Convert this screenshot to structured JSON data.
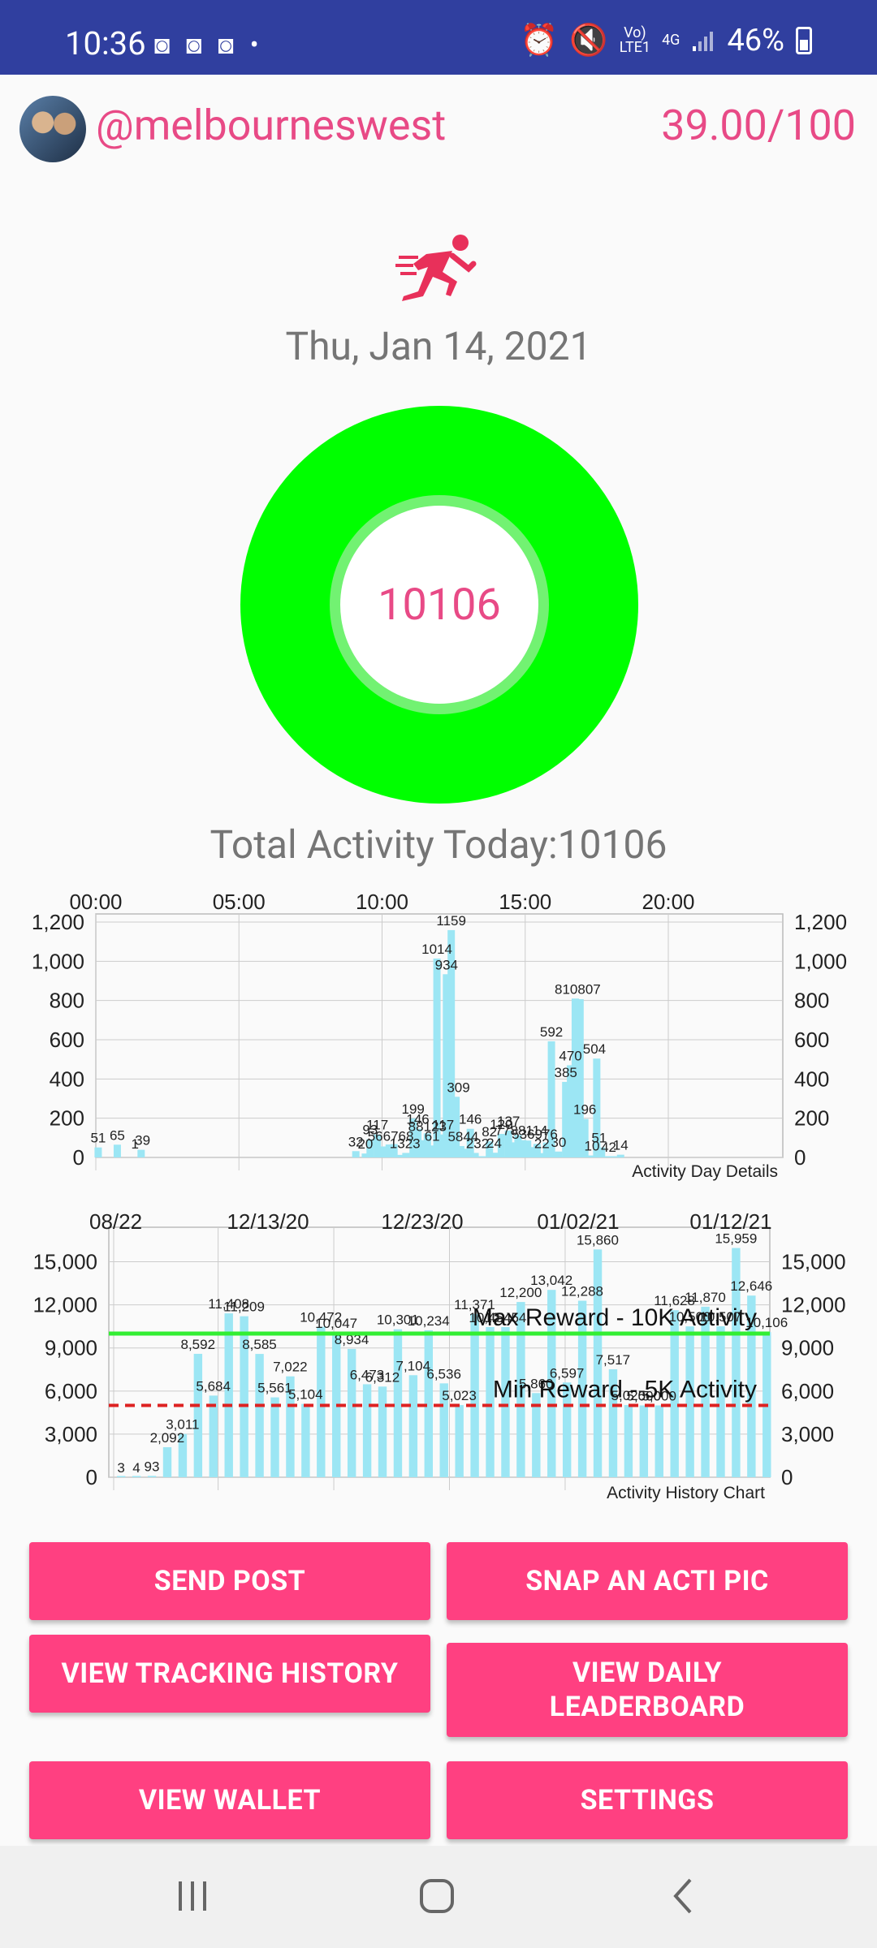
{
  "status_bar": {
    "time": "10:36",
    "notifications": "◙ ◙ ◙ •",
    "network_top": "Vo)",
    "network_bottom": "LTE1",
    "net_type": "4G",
    "battery": "46%"
  },
  "header": {
    "username": "@melbourneswest",
    "score": "39.00/100"
  },
  "date": "Thu, Jan 14, 2021",
  "ring_value": "10106",
  "total_activity": "Total Activity Today:10106",
  "colors": {
    "accent": "#e84a86",
    "button": "#ff4081",
    "ring": "#00ff00",
    "bars": "#9ce6f4",
    "max_line": "#33ee33",
    "min_line": "#dd2222"
  },
  "chart_data": [
    {
      "type": "bar",
      "title": "Activity Day Details",
      "x_ticks": [
        "00:00",
        "05:00",
        "10:00",
        "15:00",
        "20:00"
      ],
      "x_range_minutes": [
        0,
        1440
      ],
      "y_ticks": [
        "0",
        "200",
        "400",
        "600",
        "800",
        "1,000",
        "1,200"
      ],
      "ylim": [
        0,
        1200
      ],
      "bars": [
        {
          "t": 5,
          "v": 51
        },
        {
          "t": 45,
          "v": 65
        },
        {
          "t": 95,
          "v": 39
        },
        {
          "t": 545,
          "v": 32
        },
        {
          "t": 565,
          "v": 20
        },
        {
          "t": 575,
          "v": 93
        },
        {
          "t": 590,
          "v": 117
        },
        {
          "t": 605,
          "v": 56
        },
        {
          "t": 615,
          "v": 66
        },
        {
          "t": 625,
          "v": 68
        },
        {
          "t": 640,
          "v": 13
        },
        {
          "t": 650,
          "v": 23
        },
        {
          "t": 665,
          "v": 199
        },
        {
          "t": 675,
          "v": 146
        },
        {
          "t": 685,
          "v": 88
        },
        {
          "t": 695,
          "v": 123
        },
        {
          "t": 705,
          "v": 61
        },
        {
          "t": 715,
          "v": 1014
        },
        {
          "t": 725,
          "v": 117
        },
        {
          "t": 735,
          "v": 934
        },
        {
          "t": 745,
          "v": 1159
        },
        {
          "t": 755,
          "v": 309
        },
        {
          "t": 765,
          "v": 58
        },
        {
          "t": 775,
          "v": 44
        },
        {
          "t": 785,
          "v": 146
        },
        {
          "t": 795,
          "v": 23
        },
        {
          "t": 810,
          "v": 2
        },
        {
          "t": 825,
          "v": 82
        },
        {
          "t": 835,
          "v": 24
        },
        {
          "t": 850,
          "v": 120
        },
        {
          "t": 865,
          "v": 137
        },
        {
          "t": 875,
          "v": 77
        },
        {
          "t": 885,
          "v": 114
        },
        {
          "t": 895,
          "v": 88
        },
        {
          "t": 905,
          "v": 86
        },
        {
          "t": 915,
          "v": 53
        },
        {
          "t": 925,
          "v": 69
        },
        {
          "t": 935,
          "v": 22
        },
        {
          "t": 945,
          "v": 76
        },
        {
          "t": 955,
          "v": 592
        },
        {
          "t": 970,
          "v": 30
        },
        {
          "t": 985,
          "v": 385
        },
        {
          "t": 995,
          "v": 470
        },
        {
          "t": 1005,
          "v": 810
        },
        {
          "t": 1015,
          "v": 807
        },
        {
          "t": 1025,
          "v": 196
        },
        {
          "t": 1040,
          "v": 10
        },
        {
          "t": 1050,
          "v": 504
        },
        {
          "t": 1060,
          "v": 51
        },
        {
          "t": 1075,
          "v": 4
        },
        {
          "t": 1085,
          "v": 2
        },
        {
          "t": 1100,
          "v": 14
        }
      ],
      "labels": [
        {
          "t": 5,
          "v": 51,
          "text": "51"
        },
        {
          "t": 45,
          "v": 65,
          "text": "65"
        },
        {
          "t": 82,
          "v": 20,
          "text": "1"
        },
        {
          "t": 98,
          "v": 39,
          "text": "39"
        },
        {
          "t": 545,
          "v": 32,
          "text": "32"
        },
        {
          "t": 565,
          "v": 20,
          "text": "20"
        },
        {
          "t": 575,
          "v": 93,
          "text": "93"
        },
        {
          "t": 590,
          "v": 117,
          "text": "117"
        },
        {
          "t": 618,
          "v": 60,
          "text": "566768"
        },
        {
          "t": 648,
          "v": 23,
          "text": "1323"
        },
        {
          "t": 665,
          "v": 199,
          "text": "199"
        },
        {
          "t": 675,
          "v": 146,
          "text": "146"
        },
        {
          "t": 695,
          "v": 110,
          "text": "88123"
        },
        {
          "t": 705,
          "v": 61,
          "text": "61"
        },
        {
          "t": 715,
          "v": 1014,
          "text": "1014"
        },
        {
          "t": 728,
          "v": 117,
          "text": "117"
        },
        {
          "t": 735,
          "v": 934,
          "text": "934"
        },
        {
          "t": 745,
          "v": 1159,
          "text": "1159"
        },
        {
          "t": 760,
          "v": 309,
          "text": "309"
        },
        {
          "t": 770,
          "v": 58,
          "text": "5844"
        },
        {
          "t": 785,
          "v": 146,
          "text": "146"
        },
        {
          "t": 800,
          "v": 23,
          "text": "232"
        },
        {
          "t": 825,
          "v": 82,
          "text": "82"
        },
        {
          "t": 835,
          "v": 24,
          "text": "24"
        },
        {
          "t": 850,
          "v": 120,
          "text": "120"
        },
        {
          "t": 865,
          "v": 137,
          "text": "137"
        },
        {
          "t": 892,
          "v": 90,
          "text": "7788114"
        },
        {
          "t": 920,
          "v": 70,
          "text": "536976"
        },
        {
          "t": 935,
          "v": 22,
          "text": "22"
        },
        {
          "t": 955,
          "v": 592,
          "text": "592"
        },
        {
          "t": 970,
          "v": 30,
          "text": "30"
        },
        {
          "t": 985,
          "v": 385,
          "text": "385"
        },
        {
          "t": 995,
          "v": 470,
          "text": "470"
        },
        {
          "t": 1010,
          "v": 810,
          "text": "810807"
        },
        {
          "t": 1025,
          "v": 196,
          "text": "196"
        },
        {
          "t": 1045,
          "v": 504,
          "text": "504"
        },
        {
          "t": 1040,
          "v": 10,
          "text": "10"
        },
        {
          "t": 1055,
          "v": 51,
          "text": "51"
        },
        {
          "t": 1075,
          "v": 4,
          "text": "42"
        },
        {
          "t": 1100,
          "v": 14,
          "text": "14"
        }
      ]
    },
    {
      "type": "bar",
      "title": "Activity History Chart",
      "x_ticks": [
        "08/22",
        "12/13/20",
        "12/23/20",
        "01/02/21",
        "01/12/21"
      ],
      "y_ticks": [
        "0",
        "3,000",
        "6,000",
        "9,000",
        "12,000",
        "15,000"
      ],
      "ylim": [
        0,
        16500
      ],
      "values": [
        3,
        4,
        93,
        2092,
        3011,
        8592,
        5684,
        11408,
        11209,
        8585,
        5561,
        7022,
        5104,
        10472,
        10047,
        8934,
        6473,
        6312,
        10301,
        7104,
        10234,
        6536,
        5023,
        11371,
        10454,
        10454,
        12200,
        5860,
        13042,
        6597,
        12288,
        15860,
        7517,
        5025,
        5000,
        5000,
        11628,
        10500,
        11870,
        10507,
        15959,
        12646,
        10106
      ],
      "labels": [
        "3",
        "4",
        "93",
        "2,092",
        "3,011",
        "8,592",
        "5,684",
        "11,408",
        "11,209",
        "8,585",
        "5,561",
        "7,022",
        "5,104",
        "10,472",
        "10,047",
        "8,934",
        "6,473",
        "6,312",
        "10,301",
        "7,104",
        "10,234",
        "6,536",
        "5,023",
        "11,371",
        "10,454",
        "10,454",
        "12,200",
        "5,860",
        "13,042",
        "6,597",
        "12,288",
        "15,860",
        "7,517",
        "5,025",
        "5,000",
        "5,000",
        "11,628",
        "10,500",
        "11,870",
        "10,507",
        "15,959",
        "12,646",
        "10,106"
      ],
      "max_reward": {
        "value": 10000,
        "label": "Max Reward - 10K Activity"
      },
      "min_reward": {
        "value": 5000,
        "label": "Min Reward - 5K Activity"
      }
    }
  ],
  "buttons": {
    "send_post": "SEND POST",
    "snap_pic": "SNAP AN ACTI PIC",
    "tracking_history": "VIEW TRACKING HISTORY",
    "leaderboard": "VIEW DAILY LEADERBOARD",
    "wallet": "VIEW WALLET",
    "settings": "SETTINGS"
  },
  "nav": {
    "recents": "recents-icon",
    "home": "home-icon",
    "back": "back-icon"
  }
}
